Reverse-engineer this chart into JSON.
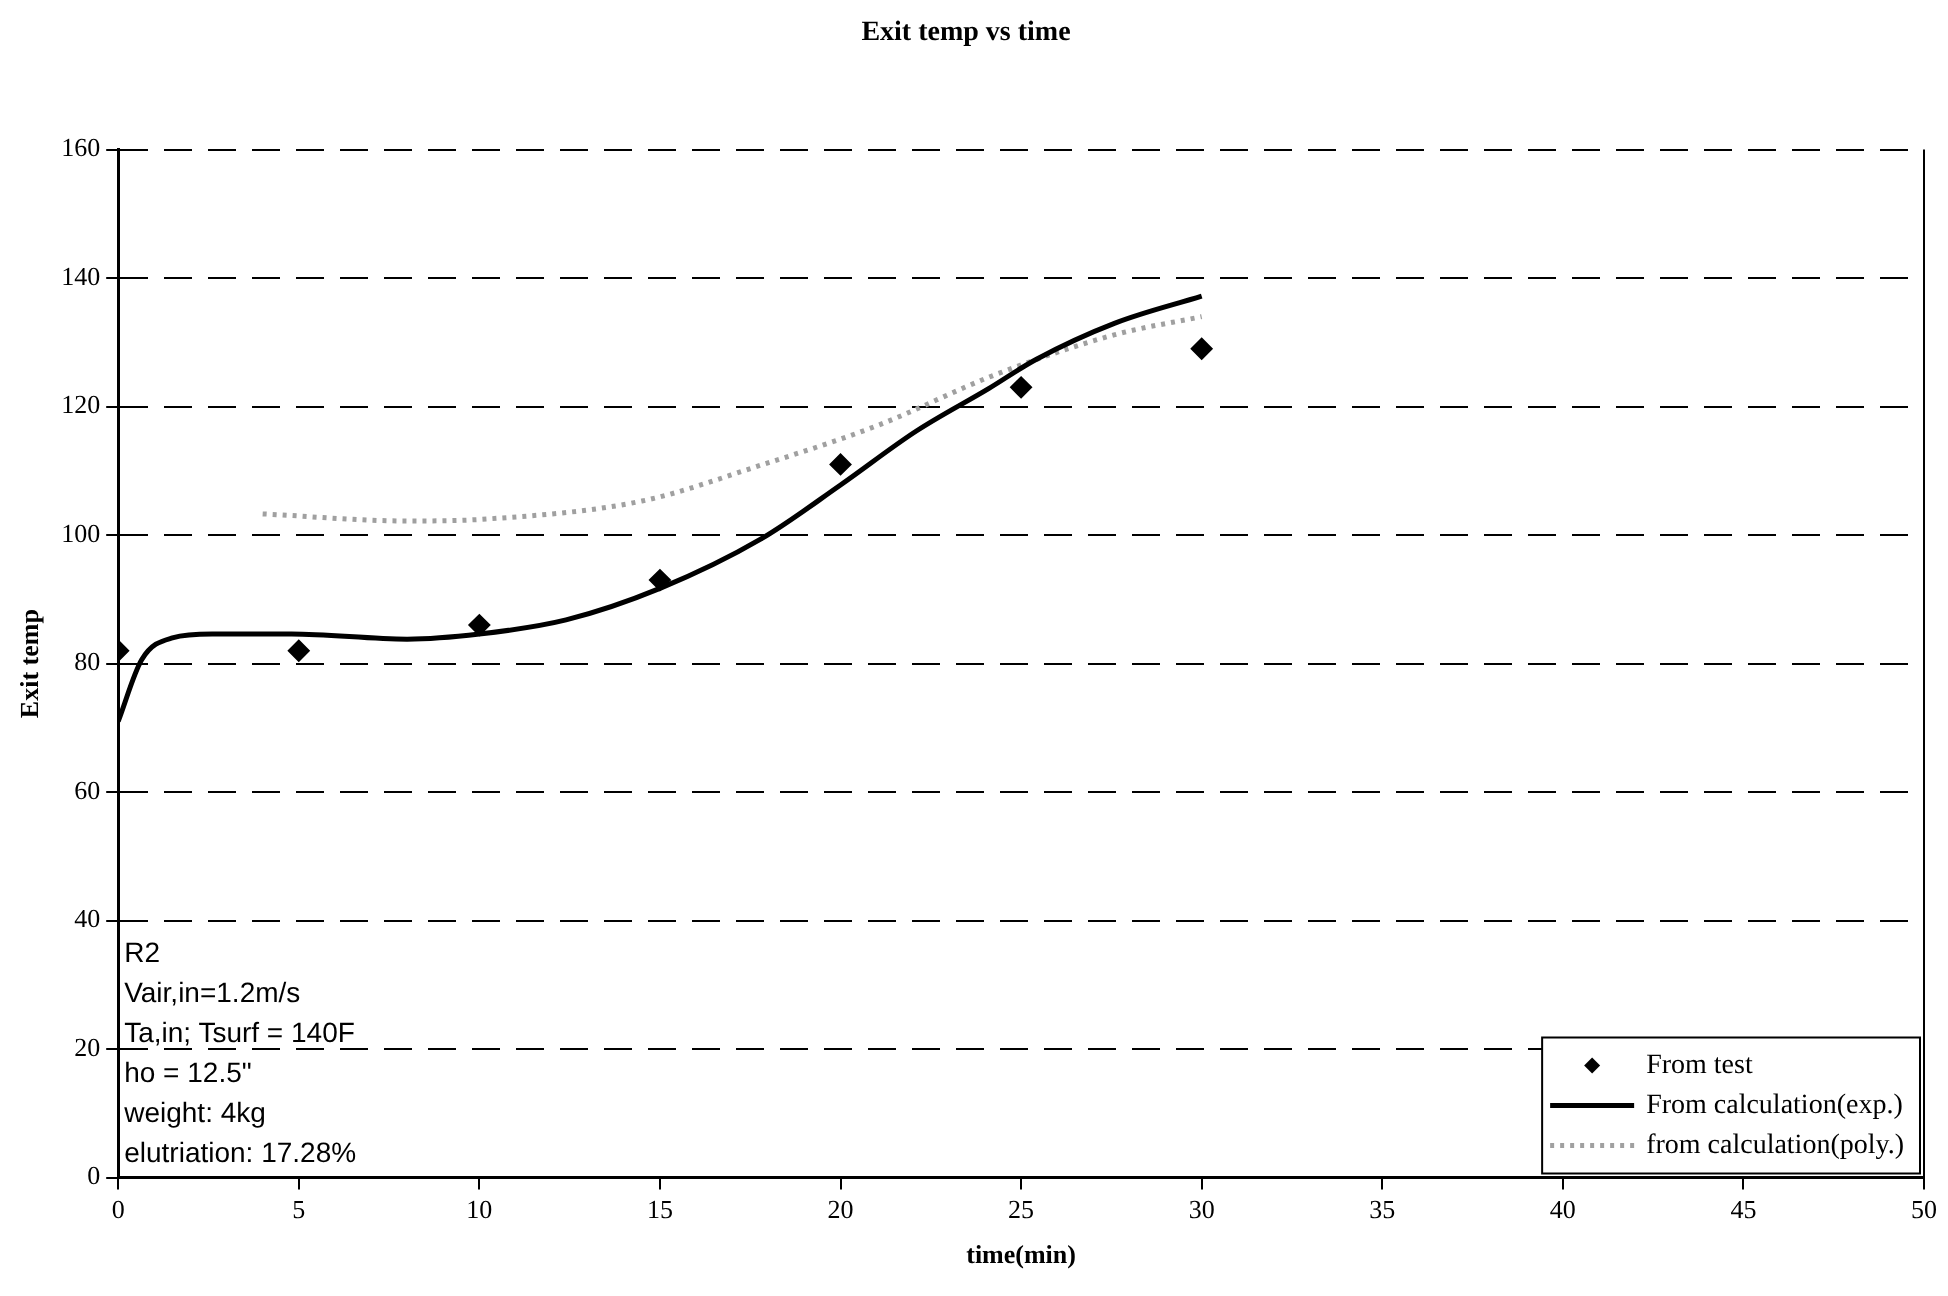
{
  "chart_data": {
    "type": "line",
    "title": "Exit temp vs time",
    "xlabel": "time(min)",
    "ylabel": "Exit temp",
    "xlim": [
      0,
      50
    ],
    "xticks": [
      0,
      5,
      10,
      15,
      20,
      25,
      30,
      35,
      40,
      45,
      50
    ],
    "ylim": [
      0,
      160
    ],
    "yticks": [
      0,
      20,
      40,
      60,
      80,
      100,
      120,
      140,
      160
    ],
    "grid": "y",
    "legend": "bottom right",
    "annotations": [
      "R2",
      "Vair,in=1.2m/s",
      "Ta,in; Tsurf = 140F",
      "ho = 12.5\"",
      "weight: 4kg",
      "elutriation: 17.28%"
    ],
    "series": [
      {
        "name": "From test",
        "type": "scatter",
        "marker": "diamond",
        "color": "#000000",
        "x": [
          0,
          5,
          10,
          15,
          20,
          25,
          30
        ],
        "values": [
          82,
          82,
          86,
          93,
          111,
          123,
          129
        ]
      },
      {
        "name": "From calculation(exp.)",
        "marker": "none",
        "line_style": "solid",
        "color": "#000000",
        "x": [
          0,
          0.65,
          1.5,
          2.6,
          4.8,
          8,
          10,
          12.4,
          15,
          17.8,
          20,
          22.1,
          24.1,
          25.4,
          27.6,
          30
        ],
        "values": [
          71,
          80.6,
          84,
          84.6,
          84.6,
          83.8,
          84.6,
          86.8,
          91.7,
          99.4,
          107.8,
          116.2,
          122.8,
          127.3,
          133,
          137.2
        ]
      },
      {
        "name": "from calculation(poly.)",
        "marker": "none",
        "line_style": "dotted",
        "color": "#a0a0a0",
        "x": [
          4,
          8,
          10.2,
          14.5,
          17.8,
          21,
          24.3,
          27.6,
          30
        ],
        "values": [
          103.3,
          102.2,
          102.5,
          105.3,
          110.9,
          117,
          125,
          131.2,
          134
        ]
      }
    ]
  }
}
